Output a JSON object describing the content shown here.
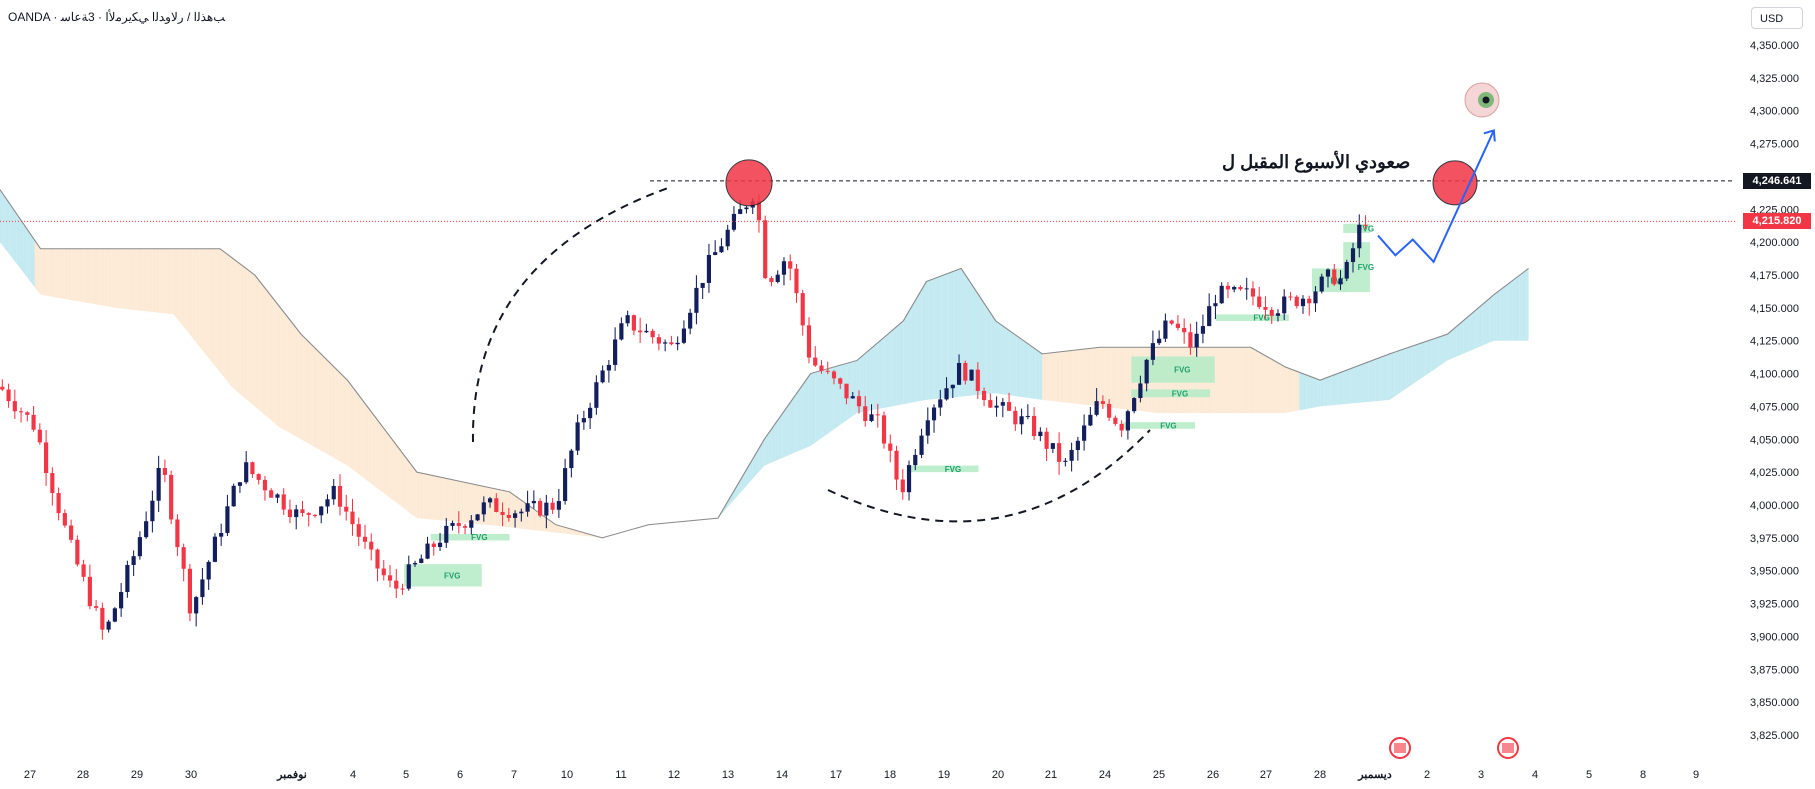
{
  "header": {
    "title": "OANDA · ﺐﻫﺬﻟﺍ / ﺭﻻﻭﺪﻟﺍ ﻲﻜﻳﺮﻣﻷﺍ · 3ﺔﻋﺎﺳ"
  },
  "currency_button": "USD",
  "annotation_text": "صعودي الأسبوع المقبل ل",
  "fvg_label": "FVG",
  "colors": {
    "up": "#131e5c",
    "down": "#f23645",
    "cloud_bull": "#b9e5ef",
    "cloud_bear": "#fbe6cf",
    "arrow": "#2962ff",
    "fvg": "#b7ecc8",
    "circle": "#f23645"
  },
  "chart_data": {
    "type": "candlestick",
    "title": "",
    "ylim": [
      3800,
      4370
    ],
    "y_ticks": [
      "4,350.000",
      "4,325.000",
      "4,300.000",
      "4,275.000",
      "4,250.000",
      "4,225.000",
      "4,200.000",
      "4,175.000",
      "4,150.000",
      "4,125.000",
      "4,100.000",
      "4,075.000",
      "4,050.000",
      "4,025.000",
      "4,000.000",
      "3,975.000",
      "3,950.000",
      "3,925.000",
      "3,900.000",
      "3,875.000",
      "3,850.000",
      "3,825.000"
    ],
    "x_labels": [
      "27",
      "28",
      "29",
      "30",
      "نوفمبر",
      "4",
      "5",
      "6",
      "7",
      "10",
      "11",
      "12",
      "13",
      "14",
      "17",
      "18",
      "19",
      "20",
      "21",
      "24",
      "25",
      "26",
      "27",
      "28",
      "ديسمبر",
      "2",
      "3",
      "4",
      "5",
      "8",
      "9"
    ],
    "price_tags": [
      {
        "label": "4,246.641",
        "value": 4246.641,
        "color": "#131722"
      },
      {
        "label": "4,215.820",
        "value": 4215.82,
        "color": "#f23645"
      }
    ],
    "anchors": [
      {
        "x": 0,
        "v": 4090
      },
      {
        "x": 30,
        "v": 4060
      },
      {
        "x": 60,
        "v": 3970
      },
      {
        "x": 90,
        "v": 3900
      },
      {
        "x": 115,
        "v": 3960
      },
      {
        "x": 140,
        "v": 4030
      },
      {
        "x": 165,
        "v": 3920
      },
      {
        "x": 210,
        "v": 4030
      },
      {
        "x": 260,
        "v": 3990
      },
      {
        "x": 290,
        "v": 4010
      },
      {
        "x": 320,
        "v": 3960
      },
      {
        "x": 340,
        "v": 3935
      },
      {
        "x": 380,
        "v": 3975
      },
      {
        "x": 420,
        "v": 4000
      },
      {
        "x": 450,
        "v": 3995
      },
      {
        "x": 480,
        "v": 4000
      },
      {
        "x": 500,
        "v": 4060
      },
      {
        "x": 515,
        "v": 4090
      },
      {
        "x": 540,
        "v": 4140
      },
      {
        "x": 580,
        "v": 4120
      },
      {
        "x": 610,
        "v": 4180
      },
      {
        "x": 630,
        "v": 4210
      },
      {
        "x": 652,
        "v": 4240
      },
      {
        "x": 662,
        "v": 4170
      },
      {
        "x": 680,
        "v": 4190
      },
      {
        "x": 700,
        "v": 4110
      },
      {
        "x": 730,
        "v": 4085
      },
      {
        "x": 760,
        "v": 4060
      },
      {
        "x": 778,
        "v": 4010
      },
      {
        "x": 800,
        "v": 4070
      },
      {
        "x": 830,
        "v": 4105
      },
      {
        "x": 860,
        "v": 4075
      },
      {
        "x": 890,
        "v": 4060
      },
      {
        "x": 920,
        "v": 4030
      },
      {
        "x": 950,
        "v": 4080
      },
      {
        "x": 968,
        "v": 4060
      },
      {
        "x": 990,
        "v": 4110
      },
      {
        "x": 1010,
        "v": 4140
      },
      {
        "x": 1030,
        "v": 4120
      },
      {
        "x": 1050,
        "v": 4160
      },
      {
        "x": 1080,
        "v": 4160
      },
      {
        "x": 1100,
        "v": 4150
      },
      {
        "x": 1130,
        "v": 4160
      },
      {
        "x": 1150,
        "v": 4175
      },
      {
        "x": 1160,
        "v": 4170
      },
      {
        "x": 1170,
        "v": 4200
      },
      {
        "x": 1178,
        "v": 4220
      },
      {
        "x": 1185,
        "v": 4210
      }
    ],
    "cloud_span_a": [
      {
        "x": 0,
        "v": 4240
      },
      {
        "x": 35,
        "v": 4195
      },
      {
        "x": 190,
        "v": 4195
      },
      {
        "x": 220,
        "v": 4175
      },
      {
        "x": 260,
        "v": 4130
      },
      {
        "x": 300,
        "v": 4095
      },
      {
        "x": 360,
        "v": 4025
      },
      {
        "x": 440,
        "v": 4010
      },
      {
        "x": 480,
        "v": 3985
      },
      {
        "x": 520,
        "v": 3975
      },
      {
        "x": 560,
        "v": 3985
      },
      {
        "x": 620,
        "v": 3990
      },
      {
        "x": 660,
        "v": 4050
      },
      {
        "x": 700,
        "v": 4100
      },
      {
        "x": 740,
        "v": 4110
      },
      {
        "x": 780,
        "v": 4140
      },
      {
        "x": 800,
        "v": 4170
      },
      {
        "x": 830,
        "v": 4180
      },
      {
        "x": 860,
        "v": 4140
      },
      {
        "x": 900,
        "v": 4115
      },
      {
        "x": 950,
        "v": 4120
      },
      {
        "x": 1000,
        "v": 4120
      },
      {
        "x": 1080,
        "v": 4120
      },
      {
        "x": 1110,
        "v": 4105
      },
      {
        "x": 1140,
        "v": 4095
      },
      {
        "x": 1200,
        "v": 4115
      },
      {
        "x": 1250,
        "v": 4130
      },
      {
        "x": 1290,
        "v": 4160
      },
      {
        "x": 1320,
        "v": 4180
      }
    ],
    "cloud_span_b": [
      {
        "x": 0,
        "v": 4200
      },
      {
        "x": 35,
        "v": 4160
      },
      {
        "x": 100,
        "v": 4150
      },
      {
        "x": 150,
        "v": 4145
      },
      {
        "x": 200,
        "v": 4090
      },
      {
        "x": 240,
        "v": 4060
      },
      {
        "x": 300,
        "v": 4030
      },
      {
        "x": 360,
        "v": 3990
      },
      {
        "x": 420,
        "v": 3985
      },
      {
        "x": 470,
        "v": 3980
      },
      {
        "x": 520,
        "v": 3975
      },
      {
        "x": 560,
        "v": 3985
      },
      {
        "x": 620,
        "v": 3990
      },
      {
        "x": 660,
        "v": 4030
      },
      {
        "x": 700,
        "v": 4045
      },
      {
        "x": 740,
        "v": 4070
      },
      {
        "x": 800,
        "v": 4080
      },
      {
        "x": 860,
        "v": 4085
      },
      {
        "x": 900,
        "v": 4080
      },
      {
        "x": 950,
        "v": 4075
      },
      {
        "x": 1000,
        "v": 4070
      },
      {
        "x": 1080,
        "v": 4070
      },
      {
        "x": 1110,
        "v": 4070
      },
      {
        "x": 1140,
        "v": 4075
      },
      {
        "x": 1200,
        "v": 4080
      },
      {
        "x": 1250,
        "v": 4110
      },
      {
        "x": 1290,
        "v": 4125
      },
      {
        "x": 1320,
        "v": 4125
      }
    ],
    "forecast_path": [
      {
        "x": 1190,
        "v": 4205
      },
      {
        "x": 1205,
        "v": 4190
      },
      {
        "x": 1220,
        "v": 4202
      },
      {
        "x": 1238,
        "v": 4185
      },
      {
        "x": 1290,
        "v": 4285
      }
    ],
    "fvg_zones": [
      {
        "x1": 349,
        "x2": 416,
        "v_top": 3955,
        "v_bot": 3938,
        "label": true
      },
      {
        "x1": 372,
        "x2": 440,
        "v_top": 3978,
        "v_bot": 3973,
        "label": true
      },
      {
        "x1": 785,
        "x2": 845,
        "v_top": 4030,
        "v_bot": 4025,
        "label": true
      },
      {
        "x1": 977,
        "x2": 1049,
        "v_top": 4113,
        "v_bot": 4093,
        "label": true
      },
      {
        "x1": 977,
        "x2": 1045,
        "v_top": 4088,
        "v_bot": 4082,
        "label": true
      },
      {
        "x1": 970,
        "x2": 1032,
        "v_top": 4063,
        "v_bot": 4058,
        "label": true
      },
      {
        "x1": 1050,
        "x2": 1113,
        "v_top": 4145,
        "v_bot": 4140,
        "label": true
      },
      {
        "x1": 1133,
        "x2": 1163,
        "v_top": 4180,
        "v_bot": 4162,
        "label": true
      },
      {
        "x1": 1160,
        "x2": 1183,
        "v_top": 4200,
        "v_bot": 4162,
        "label": true
      },
      {
        "x1": 1160,
        "x2": 1183,
        "v_top": 4214,
        "v_bot": 4207,
        "label": true
      }
    ]
  }
}
